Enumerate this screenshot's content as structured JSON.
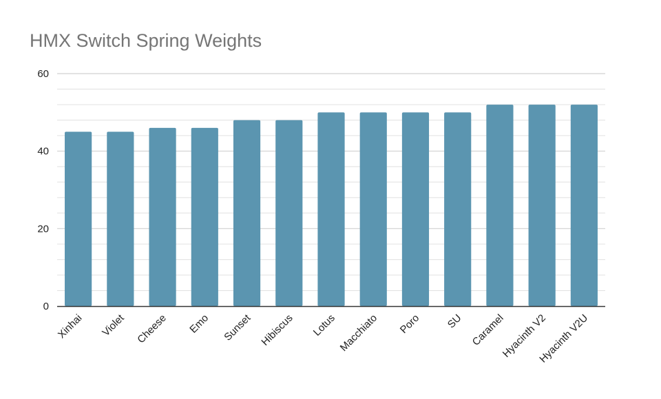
{
  "chart_data": {
    "type": "bar",
    "title": "HMX Switch Spring Weights",
    "xlabel": "",
    "ylabel": "",
    "categories": [
      "Xinhai",
      "Violet",
      "Cheese",
      "Emo",
      "Sunset",
      "Hibiscus",
      "Lotus",
      "Macchiato",
      "Poro",
      "SU",
      "Caramel",
      "Hyacinth V2",
      "Hyacinth V2U"
    ],
    "values": [
      45,
      45,
      46,
      46,
      48,
      48,
      50,
      50,
      50,
      50,
      52,
      52,
      52
    ],
    "ylim": [
      0,
      60
    ],
    "yticks": [
      "0",
      "20",
      "40",
      "60"
    ],
    "grid": true,
    "legend": "none",
    "colors": {
      "bar": "#5b95b0",
      "gridline": "#e0e0e0",
      "axis": "#333333",
      "title": "#757575"
    }
  }
}
